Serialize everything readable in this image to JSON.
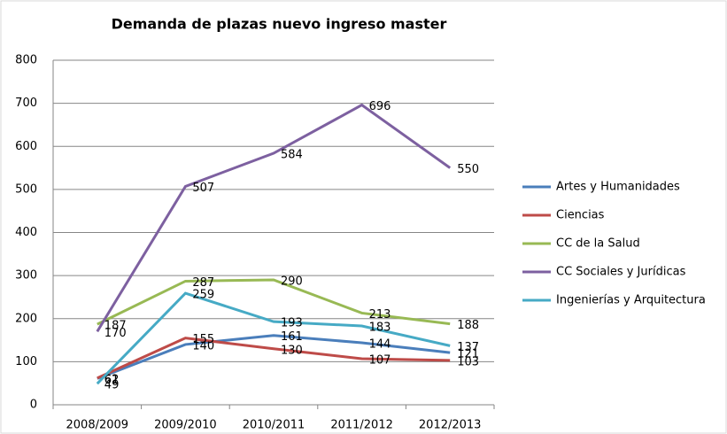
{
  "chart_data": {
    "type": "line",
    "title": "Demanda de plazas nuevo ingreso master",
    "categories": [
      "2008/2009",
      "2009/2010",
      "2010/2011",
      "2011/2012",
      "2012/2013"
    ],
    "series": [
      {
        "name": "Artes y Humanidades",
        "color": "#4a7ebb",
        "values": [
          61,
          140,
          161,
          144,
          121
        ]
      },
      {
        "name": "Ciencias",
        "color": "#be4b48",
        "values": [
          62,
          155,
          130,
          107,
          103
        ]
      },
      {
        "name": "CC de la Salud",
        "color": "#98b954",
        "values": [
          187,
          287,
          290,
          213,
          188
        ]
      },
      {
        "name": "CC Sociales y Jurídicas",
        "color": "#7d60a0",
        "values": [
          170,
          507,
          584,
          696,
          550
        ]
      },
      {
        "name": "Ingenierías y Arquitectura",
        "color": "#46aac5",
        "values": [
          49,
          259,
          193,
          183,
          137
        ]
      }
    ],
    "ylim": [
      0,
      800
    ],
    "yticks": [
      0,
      100,
      200,
      300,
      400,
      500,
      600,
      700,
      800
    ],
    "grid": true,
    "legend": "right"
  }
}
